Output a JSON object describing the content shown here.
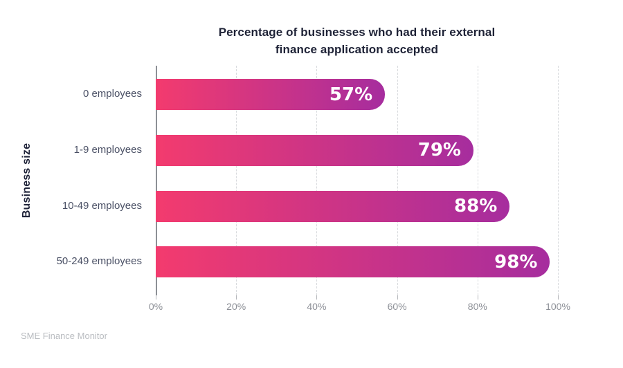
{
  "title": {
    "lines": [
      "Percentage of businesses who had their external",
      "finance application accepted"
    ],
    "full_text": "Percentage of businesses who had their external finance application accepted"
  },
  "chart_data": {
    "type": "bar",
    "orientation": "horizontal",
    "title": "Percentage of businesses who had their external finance application accepted",
    "categories": [
      "0 employees",
      "1-9 employees",
      "10-49 employees",
      "50-249 employees"
    ],
    "values": [
      57,
      79,
      88,
      98
    ],
    "value_labels": [
      "57%",
      "79%",
      "88%",
      "98%"
    ],
    "xlabel": "",
    "ylabel": "Business size",
    "xlim": [
      0,
      100
    ],
    "x_ticks": [
      {
        "value": 0,
        "label": "0%"
      },
      {
        "value": 20,
        "label": "20%"
      },
      {
        "value": 40,
        "label": "40%"
      },
      {
        "value": 60,
        "label": "60%"
      },
      {
        "value": 80,
        "label": "80%"
      },
      {
        "value": 100,
        "label": "100%"
      }
    ],
    "grid": "dashed-vertical",
    "legend": "none",
    "bar_gradient": {
      "start": "#F33B6E",
      "end": "#A62D9E"
    },
    "value_label_color": "#FFFFFF"
  },
  "footer": {
    "source": "SME Finance Monitor"
  },
  "colors": {
    "background": "#FFFFFF",
    "title_text": "#1F2337",
    "category_text": "#4A5065",
    "axis_label_text": "#20243A",
    "tick_text": "#8C8F96",
    "gridline": "#D8DADD",
    "axis_line": "#8D9096",
    "source_text": "#B9BCC0"
  }
}
